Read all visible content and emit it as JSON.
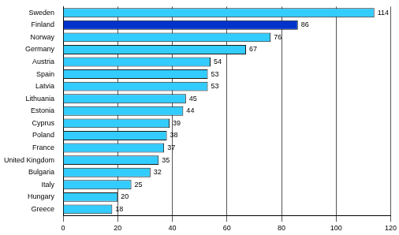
{
  "chart_data": {
    "type": "bar",
    "orientation": "horizontal",
    "categories": [
      "Sweden",
      "Finland",
      "Norway",
      "Germany",
      "Austria",
      "Spain",
      "Latvia",
      "Lithuania",
      "Estonia",
      "Cyprus",
      "Poland",
      "France",
      "United Kingdom",
      "Bulgaria",
      "Italy",
      "Hungary",
      "Greece"
    ],
    "values": [
      114,
      86,
      76,
      67,
      54,
      53,
      53,
      45,
      44,
      39,
      38,
      37,
      35,
      32,
      25,
      20,
      18
    ],
    "colors": [
      "#33ccff",
      "#0033cc",
      "#33ccff",
      "#33ccff",
      "#33ccff",
      "#33ccff",
      "#33ccff",
      "#33ccff",
      "#33ccff",
      "#33ccff",
      "#33ccff",
      "#33ccff",
      "#33ccff",
      "#33ccff",
      "#33ccff",
      "#33ccff",
      "#33ccff"
    ],
    "xlim": [
      0,
      120
    ],
    "xticks": [
      0,
      20,
      40,
      60,
      80,
      100,
      120
    ],
    "grid": true,
    "data_labels": true
  }
}
